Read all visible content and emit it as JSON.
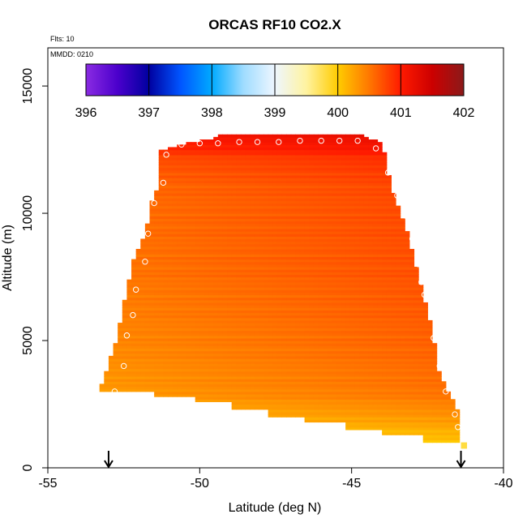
{
  "chart_data": {
    "type": "heatmap",
    "title": "ORCAS RF10 CO2.X",
    "flights_label": "Flts: 10",
    "date_label": "MMDD: 0210",
    "xlabel": "Latitude (deg N)",
    "ylabel": "Altitude (m)",
    "xlim": [
      -55,
      -40
    ],
    "ylim": [
      0,
      16500
    ],
    "x_ticks": [
      -55,
      -50,
      -45,
      -40
    ],
    "x_tick_labels": [
      "-55",
      "-50",
      "-45",
      "-40"
    ],
    "y_ticks": [
      0,
      5000,
      10000,
      15000
    ],
    "y_tick_labels": [
      "0",
      "5000",
      "10000",
      "15000"
    ],
    "colorbar": {
      "min": 396,
      "max": 402,
      "ticks": [
        396,
        397,
        398,
        399,
        400,
        401,
        402
      ],
      "tick_labels": [
        "396",
        "397",
        "398",
        "399",
        "400",
        "401",
        "402"
      ],
      "stops": [
        {
          "value": 396.0,
          "color": "#8a2be2"
        },
        {
          "value": 396.5,
          "color": "#4b00cc"
        },
        {
          "value": 397.0,
          "color": "#0000a0"
        },
        {
          "value": 397.5,
          "color": "#0055ff"
        },
        {
          "value": 398.0,
          "color": "#00aaff"
        },
        {
          "value": 398.5,
          "color": "#9fdcff"
        },
        {
          "value": 399.0,
          "color": "#eef6ff"
        },
        {
          "value": 399.5,
          "color": "#fff3a0"
        },
        {
          "value": 400.0,
          "color": "#ffcc00"
        },
        {
          "value": 400.5,
          "color": "#ff7700"
        },
        {
          "value": 401.0,
          "color": "#ff1a00"
        },
        {
          "value": 401.5,
          "color": "#cc0000"
        },
        {
          "value": 402.0,
          "color": "#8b1a1a"
        }
      ]
    },
    "curtain": {
      "lat_range": [
        -53.3,
        -41.4
      ],
      "alt_range": [
        900,
        13100
      ],
      "left_edge": [
        {
          "alt": 3000,
          "lat": -53.3
        },
        {
          "alt": 5200,
          "lat": -52.7
        },
        {
          "alt": 7000,
          "lat": -52.4
        },
        {
          "alt": 8100,
          "lat": -52.2
        },
        {
          "alt": 9200,
          "lat": -51.8
        },
        {
          "alt": 10400,
          "lat": -51.6
        },
        {
          "alt": 11200,
          "lat": -51.3
        },
        {
          "alt": 12500,
          "lat": -51.3
        },
        {
          "alt": 12700,
          "lat": -50.6
        },
        {
          "alt": 13000,
          "lat": -49.4
        }
      ],
      "right_edge": [
        {
          "alt": 13000,
          "lat": -44.6
        },
        {
          "alt": 12800,
          "lat": -44.0
        },
        {
          "alt": 11600,
          "lat": -43.8
        },
        {
          "alt": 10700,
          "lat": -43.6
        },
        {
          "alt": 9000,
          "lat": -43.1
        },
        {
          "alt": 7500,
          "lat": -42.8
        },
        {
          "alt": 5200,
          "lat": -42.3
        },
        {
          "alt": 4000,
          "lat": -42.2
        },
        {
          "alt": 2200,
          "lat": -41.5
        },
        {
          "alt": 1000,
          "lat": -41.4
        }
      ],
      "bottom_steps": [
        {
          "lat_from": -53.3,
          "lat_to": -51.5,
          "alt": 3000
        },
        {
          "lat_from": -51.5,
          "lat_to": -50.2,
          "alt": 2800
        },
        {
          "lat_from": -50.2,
          "lat_to": -49.0,
          "alt": 2600
        },
        {
          "lat_from": -49.0,
          "lat_to": -47.7,
          "alt": 2300
        },
        {
          "lat_from": -47.7,
          "lat_to": -46.5,
          "alt": 2000
        },
        {
          "lat_from": -46.5,
          "lat_to": -45.2,
          "alt": 1800
        },
        {
          "lat_from": -45.2,
          "lat_to": -44.0,
          "alt": 1500
        },
        {
          "lat_from": -44.0,
          "lat_to": -42.7,
          "alt": 1300
        },
        {
          "lat_from": -42.7,
          "lat_to": -41.4,
          "alt": 1000
        }
      ],
      "extra_cell": {
        "lat_from": -41.4,
        "lat_to": -41.2,
        "alt_from": 750,
        "alt_to": 1000,
        "value": 399.8
      },
      "value_profile": [
        {
          "alt": 1000,
          "value": 399.8
        },
        {
          "alt": 2000,
          "value": 400.1
        },
        {
          "alt": 3000,
          "value": 400.3
        },
        {
          "alt": 5000,
          "value": 400.4
        },
        {
          "alt": 8000,
          "value": 400.5
        },
        {
          "alt": 11000,
          "value": 400.55
        },
        {
          "alt": 12200,
          "value": 400.7
        },
        {
          "alt": 12600,
          "value": 400.9
        },
        {
          "alt": 13000,
          "value": 401.0
        }
      ],
      "lat_trend_per_deg": 0.02,
      "row_noise": [
        0.02,
        -0.03,
        0.05,
        -0.01,
        0.04,
        -0.04,
        0.0,
        0.03,
        -0.02,
        0.05,
        -0.05,
        0.01,
        0.03,
        -0.03,
        0.02,
        -0.01
      ]
    },
    "flight_points": [
      {
        "lat": -52.8,
        "alt": 3000
      },
      {
        "lat": -52.5,
        "alt": 4000
      },
      {
        "lat": -52.4,
        "alt": 5200
      },
      {
        "lat": -52.2,
        "alt": 6000
      },
      {
        "lat": -52.1,
        "alt": 7000
      },
      {
        "lat": -51.8,
        "alt": 8100
      },
      {
        "lat": -51.7,
        "alt": 9200
      },
      {
        "lat": -51.5,
        "alt": 10400
      },
      {
        "lat": -51.2,
        "alt": 11200
      },
      {
        "lat": -51.1,
        "alt": 12300
      },
      {
        "lat": -50.6,
        "alt": 12700
      },
      {
        "lat": -50.0,
        "alt": 12750
      },
      {
        "lat": -49.4,
        "alt": 12750
      },
      {
        "lat": -48.7,
        "alt": 12800
      },
      {
        "lat": -48.1,
        "alt": 12800
      },
      {
        "lat": -47.4,
        "alt": 12800
      },
      {
        "lat": -46.7,
        "alt": 12850
      },
      {
        "lat": -46.0,
        "alt": 12850
      },
      {
        "lat": -45.4,
        "alt": 12850
      },
      {
        "lat": -44.8,
        "alt": 12850
      },
      {
        "lat": -44.2,
        "alt": 12550
      },
      {
        "lat": -43.8,
        "alt": 11600
      },
      {
        "lat": -43.5,
        "alt": 10700
      },
      {
        "lat": -43.2,
        "alt": 9900
      },
      {
        "lat": -43.0,
        "alt": 9000
      },
      {
        "lat": -42.8,
        "alt": 8000
      },
      {
        "lat": -42.7,
        "alt": 7300
      },
      {
        "lat": -42.6,
        "alt": 6800
      },
      {
        "lat": -42.3,
        "alt": 5100
      },
      {
        "lat": -42.1,
        "alt": 4000
      },
      {
        "lat": -41.9,
        "alt": 3000
      },
      {
        "lat": -41.6,
        "alt": 2100
      },
      {
        "lat": -41.5,
        "alt": 1600
      }
    ],
    "arrows": [
      {
        "lat": -53.0
      },
      {
        "lat": -41.4
      }
    ]
  }
}
